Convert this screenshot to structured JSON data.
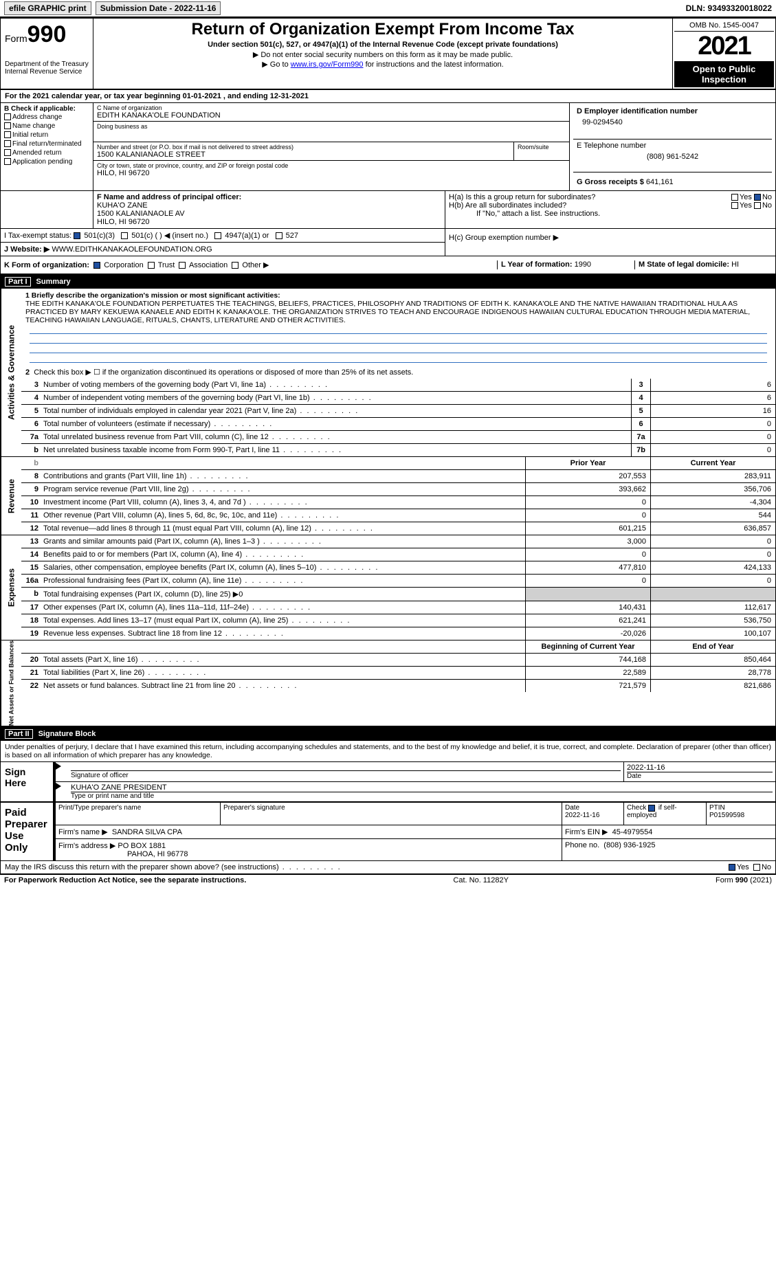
{
  "topbar": {
    "efile": "efile GRAPHIC print",
    "submission_label": "Submission Date - 2022-11-16",
    "dln_label": "DLN: 93493320018022"
  },
  "header": {
    "form_word": "Form",
    "form_num": "990",
    "dept": "Department of the Treasury Internal Revenue Service",
    "title": "Return of Organization Exempt From Income Tax",
    "subtitle": "Under section 501(c), 527, or 4947(a)(1) of the Internal Revenue Code (except private foundations)",
    "note1": "▶ Do not enter social security numbers on this form as it may be made public.",
    "note2_pre": "▶ Go to ",
    "note2_link": "www.irs.gov/Form990",
    "note2_post": " for instructions and the latest information.",
    "omb": "OMB No. 1545-0047",
    "year": "2021",
    "open": "Open to Public Inspection"
  },
  "line_a": "For the 2021 calendar year, or tax year beginning 01-01-2021   , and ending 12-31-2021",
  "boxB": {
    "label": "B Check if applicable:",
    "items": [
      "Address change",
      "Name change",
      "Initial return",
      "Final return/terminated",
      "Amended return",
      "Application pending"
    ]
  },
  "boxC": {
    "label": "C Name of organization",
    "name": "EDITH KANAKA'OLE FOUNDATION",
    "dba_label": "Doing business as",
    "street_label": "Number and street (or P.O. box if mail is not delivered to street address)",
    "street": "1500 KALANIANAOLE STREET",
    "room_label": "Room/suite",
    "city_label": "City or town, state or province, country, and ZIP or foreign postal code",
    "city": "HILO, HI  96720"
  },
  "boxD": {
    "label": "D Employer identification number",
    "value": "99-0294540"
  },
  "boxE": {
    "label": "E Telephone number",
    "value": "(808) 961-5242"
  },
  "boxG": {
    "label": "G Gross receipts $",
    "value": "641,161"
  },
  "boxF": {
    "label": "F  Name and address of principal officer:",
    "name": "KUHA'O ZANE",
    "street": "1500 KALANIANAOLE AV",
    "city": "HILO, HI  96720"
  },
  "boxH": {
    "a": "H(a)  Is this a group return for subordinates?",
    "b": "H(b)  Are all subordinates included?",
    "b_note": "If \"No,\" attach a list. See instructions.",
    "c": "H(c)  Group exemption number ▶",
    "yes": "Yes",
    "no": "No"
  },
  "lineI": {
    "label": "I   Tax-exempt status:",
    "o1": "501(c)(3)",
    "o2": "501(c) (  ) ◀ (insert no.)",
    "o3": "4947(a)(1) or",
    "o4": "527"
  },
  "lineJ": {
    "label": "J   Website: ▶",
    "value": "WWW.EDITHKANAKAOLEFOUNDATION.ORG"
  },
  "lineK": {
    "label": "K Form of organization:",
    "o1": "Corporation",
    "o2": "Trust",
    "o3": "Association",
    "o4": "Other ▶"
  },
  "lineL": {
    "label": "L Year of formation:",
    "value": "1990"
  },
  "lineM": {
    "label": "M State of legal domicile:",
    "value": "HI"
  },
  "part1": {
    "title": "Part I",
    "name": "Summary",
    "q1_label": "1  Briefly describe the organization's mission or most significant activities:",
    "mission": "THE EDITH KANAKA'OLE FOUNDATION PERPETUATES THE TEACHINGS, BELIEFS, PRACTICES, PHILOSOPHY AND TRADITIONS OF EDITH K. KANAKA'OLE AND THE NATIVE HAWAIIAN TRADITIONAL HULA AS PRACTICED BY MARY KEKUEWA KANAELE AND EDITH K KANAKA'OLE. THE ORGANIZATION STRIVES TO TEACH AND ENCOURAGE INDIGENOUS HAWAIIAN CULTURAL EDUCATION THROUGH MEDIA MATERIAL, TEACHING HAWAIIAN LANGUAGE, RITUALS, CHANTS, LITERATURE AND OTHER ACTIVITIES.",
    "q2": "Check this box ▶ ☐  if the organization discontinued its operations or disposed of more than 25% of its net assets.",
    "rows_gov": [
      {
        "n": "3",
        "t": "Number of voting members of the governing body (Part VI, line 1a)",
        "b": "3",
        "v": "6"
      },
      {
        "n": "4",
        "t": "Number of independent voting members of the governing body (Part VI, line 1b)",
        "b": "4",
        "v": "6"
      },
      {
        "n": "5",
        "t": "Total number of individuals employed in calendar year 2021 (Part V, line 2a)",
        "b": "5",
        "v": "16"
      },
      {
        "n": "6",
        "t": "Total number of volunteers (estimate if necessary)",
        "b": "6",
        "v": "0"
      },
      {
        "n": "7a",
        "t": "Total unrelated business revenue from Part VIII, column (C), line 12",
        "b": "7a",
        "v": "0"
      },
      {
        "n": "b",
        "t": "Net unrelated business taxable income from Form 990-T, Part I, line 11",
        "b": "7b",
        "v": "0"
      }
    ],
    "col_prior": "Prior Year",
    "col_current": "Current Year",
    "revenue": [
      {
        "n": "8",
        "t": "Contributions and grants (Part VIII, line 1h)",
        "p": "207,553",
        "c": "283,911"
      },
      {
        "n": "9",
        "t": "Program service revenue (Part VIII, line 2g)",
        "p": "393,662",
        "c": "356,706"
      },
      {
        "n": "10",
        "t": "Investment income (Part VIII, column (A), lines 3, 4, and 7d )",
        "p": "0",
        "c": "-4,304"
      },
      {
        "n": "11",
        "t": "Other revenue (Part VIII, column (A), lines 5, 6d, 8c, 9c, 10c, and 11e)",
        "p": "0",
        "c": "544"
      },
      {
        "n": "12",
        "t": "Total revenue—add lines 8 through 11 (must equal Part VIII, column (A), line 12)",
        "p": "601,215",
        "c": "636,857"
      }
    ],
    "expenses": [
      {
        "n": "13",
        "t": "Grants and similar amounts paid (Part IX, column (A), lines 1–3 )",
        "p": "3,000",
        "c": "0"
      },
      {
        "n": "14",
        "t": "Benefits paid to or for members (Part IX, column (A), line 4)",
        "p": "0",
        "c": "0"
      },
      {
        "n": "15",
        "t": "Salaries, other compensation, employee benefits (Part IX, column (A), lines 5–10)",
        "p": "477,810",
        "c": "424,133"
      },
      {
        "n": "16a",
        "t": "Professional fundraising fees (Part IX, column (A), line 11e)",
        "p": "0",
        "c": "0"
      },
      {
        "n": "b",
        "t": "Total fundraising expenses (Part IX, column (D), line 25) ▶0",
        "p": "",
        "c": "",
        "grey": true
      },
      {
        "n": "17",
        "t": "Other expenses (Part IX, column (A), lines 11a–11d, 11f–24e)",
        "p": "140,431",
        "c": "112,617"
      },
      {
        "n": "18",
        "t": "Total expenses. Add lines 13–17 (must equal Part IX, column (A), line 25)",
        "p": "621,241",
        "c": "536,750"
      },
      {
        "n": "19",
        "t": "Revenue less expenses. Subtract line 18 from line 12",
        "p": "-20,026",
        "c": "100,107"
      }
    ],
    "col_begin": "Beginning of Current Year",
    "col_end": "End of Year",
    "netassets": [
      {
        "n": "20",
        "t": "Total assets (Part X, line 16)",
        "p": "744,168",
        "c": "850,464"
      },
      {
        "n": "21",
        "t": "Total liabilities (Part X, line 26)",
        "p": "22,589",
        "c": "28,778"
      },
      {
        "n": "22",
        "t": "Net assets or fund balances. Subtract line 21 from line 20",
        "p": "721,579",
        "c": "821,686"
      }
    ],
    "side_gov": "Activities & Governance",
    "side_rev": "Revenue",
    "side_exp": "Expenses",
    "side_net": "Net Assets or Fund Balances"
  },
  "part2": {
    "title": "Part II",
    "name": "Signature Block",
    "decl": "Under penalties of perjury, I declare that I have examined this return, including accompanying schedules and statements, and to the best of my knowledge and belief, it is true, correct, and complete. Declaration of preparer (other than officer) is based on all information of which preparer has any knowledge.",
    "sign_here": "Sign Here",
    "sig_officer": "Signature of officer",
    "date": "Date",
    "date_val": "2022-11-16",
    "officer_name": "KUHA'O ZANE PRESIDENT",
    "name_title": "Type or print name and title",
    "paid": "Paid Preparer Use Only",
    "prep_name_label": "Print/Type preparer's name",
    "prep_sig_label": "Preparer's signature",
    "prep_date_label": "Date",
    "prep_date": "2022-11-16",
    "check_self": "Check ☑ if self-employed",
    "ptin_label": "PTIN",
    "ptin": "P01599598",
    "firm_name_label": "Firm's name  ▶",
    "firm_name": "SANDRA SILVA CPA",
    "firm_ein_label": "Firm's EIN ▶",
    "firm_ein": "45-4979554",
    "firm_addr_label": "Firm's address ▶",
    "firm_addr": "PO BOX 1881",
    "firm_city": "PAHOA, HI  96778",
    "phone_label": "Phone no.",
    "phone": "(808) 936-1925",
    "discuss": "May the IRS discuss this return with the preparer shown above? (see instructions)"
  },
  "footer": {
    "left": "For Paperwork Reduction Act Notice, see the separate instructions.",
    "mid": "Cat. No. 11282Y",
    "right": "Form 990 (2021)"
  }
}
